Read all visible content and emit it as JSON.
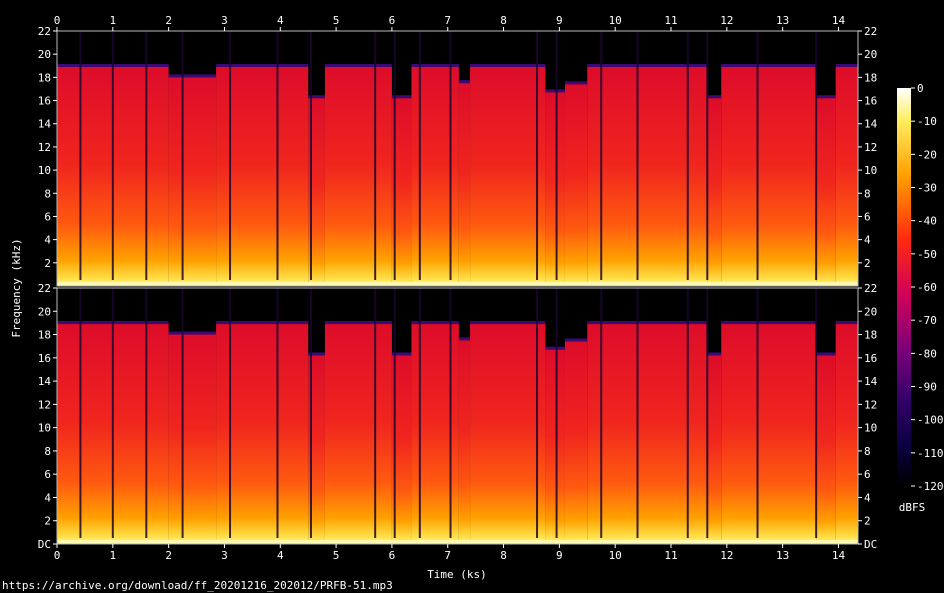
{
  "chart_data": {
    "type": "heatmap",
    "title": "",
    "xlabel": "Time (ks)",
    "ylabel": "Frequency (kHz)",
    "xlim": [
      0,
      14.35
    ],
    "ylim": [
      0,
      22
    ],
    "x_ticks": [
      "0",
      "1",
      "2",
      "3",
      "4",
      "5",
      "6",
      "7",
      "8",
      "9",
      "10",
      "11",
      "12",
      "13",
      "14"
    ],
    "y_ticks_upper": [
      "2",
      "4",
      "6",
      "8",
      "10",
      "12",
      "14",
      "16",
      "18",
      "20",
      "22"
    ],
    "y_ticks_lower": [
      "DC",
      "2",
      "4",
      "6",
      "8",
      "10",
      "12",
      "14",
      "16",
      "18",
      "20",
      "22"
    ],
    "channels": 2,
    "cutoff_khz": 19,
    "colorbar": {
      "label": "dBFS",
      "range": [
        -120,
        0
      ],
      "ticks": [
        "0",
        "-10",
        "-20",
        "-30",
        "-40",
        "-50",
        "-60",
        "-70",
        "-80",
        "-90",
        "-100",
        "-110",
        "-120"
      ]
    },
    "cutoff_segments": [
      {
        "start": 0.0,
        "end": 2.0,
        "cutoff": 18.9
      },
      {
        "start": 2.0,
        "end": 2.85,
        "cutoff": 18.0
      },
      {
        "start": 2.85,
        "end": 4.5,
        "cutoff": 18.9
      },
      {
        "start": 4.5,
        "end": 4.8,
        "cutoff": 16.2
      },
      {
        "start": 4.8,
        "end": 6.0,
        "cutoff": 18.9
      },
      {
        "start": 6.0,
        "end": 6.35,
        "cutoff": 16.2
      },
      {
        "start": 6.35,
        "end": 7.2,
        "cutoff": 18.9
      },
      {
        "start": 7.2,
        "end": 7.4,
        "cutoff": 17.5
      },
      {
        "start": 7.4,
        "end": 8.75,
        "cutoff": 18.9
      },
      {
        "start": 8.75,
        "end": 9.1,
        "cutoff": 16.7
      },
      {
        "start": 9.1,
        "end": 9.5,
        "cutoff": 17.4
      },
      {
        "start": 9.5,
        "end": 11.65,
        "cutoff": 18.9
      },
      {
        "start": 11.65,
        "end": 11.9,
        "cutoff": 16.2
      },
      {
        "start": 11.9,
        "end": 13.6,
        "cutoff": 18.9
      },
      {
        "start": 13.6,
        "end": 13.95,
        "cutoff": 16.2
      },
      {
        "start": 13.95,
        "end": 14.35,
        "cutoff": 18.9
      }
    ],
    "gaps_ks": [
      0.42,
      1.0,
      1.6,
      2.25,
      3.1,
      3.95,
      4.55,
      5.7,
      6.05,
      6.5,
      7.05,
      8.6,
      8.95,
      9.75,
      10.4,
      11.3,
      11.65,
      12.55,
      13.6
    ]
  },
  "source_url": "https://archive.org/download/ff_20201216_202012/PRFB-51.mp3",
  "colors": {
    "background": "#000000",
    "scale_top": "#ffffff",
    "scale_yellow": "#ffcc00",
    "scale_red": "#ff1a1a",
    "scale_magenta": "#a0007a",
    "scale_purple": "#380070",
    "scale_navy": "#000040"
  }
}
